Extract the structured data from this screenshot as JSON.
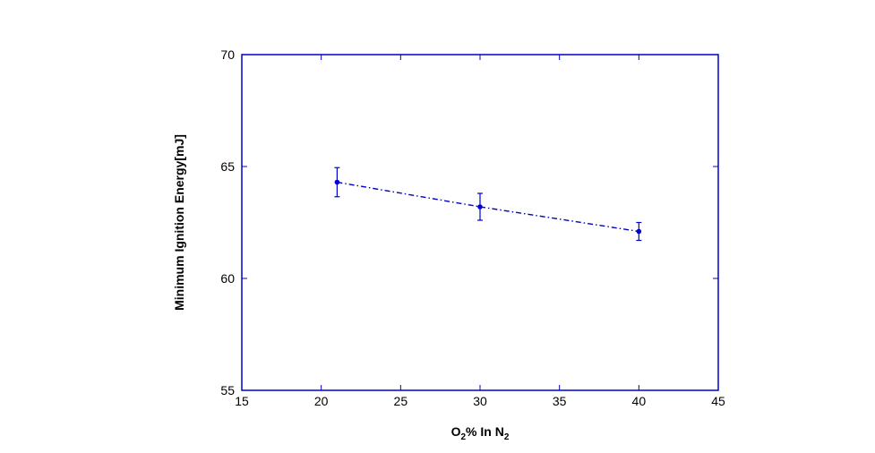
{
  "chart_data": {
    "type": "line",
    "xlabel": {
      "parts": [
        {
          "text": "O",
          "sub": false
        },
        {
          "text": "2",
          "sub": true
        },
        {
          "text": "% In N",
          "sub": false
        },
        {
          "text": "2",
          "sub": true
        }
      ]
    },
    "ylabel": "Minimum Ignition Energy[mJ]",
    "xlim": [
      15,
      45
    ],
    "ylim": [
      55,
      70
    ],
    "xticks": [
      "15",
      "20",
      "25",
      "30",
      "35",
      "40",
      "45"
    ],
    "yticks": [
      "55",
      "60",
      "65",
      "70"
    ],
    "grid": false,
    "legend": "none",
    "series": [
      {
        "x": [
          21,
          30,
          40
        ],
        "y": [
          64.3,
          63.2,
          62.1
        ],
        "error": [
          0.65,
          0.6,
          0.4
        ],
        "color": "#0000cc",
        "line_style": "dash-dot",
        "marker": "dot"
      }
    ],
    "axis_color": "#0000cc"
  }
}
